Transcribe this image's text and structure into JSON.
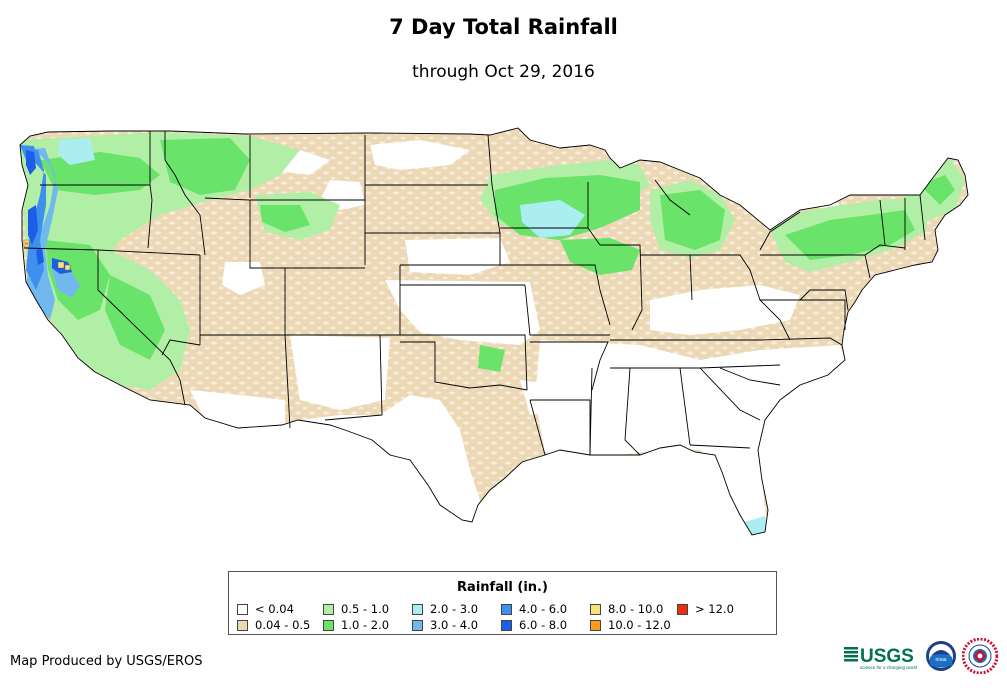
{
  "header": {
    "title": "7 Day Total Rainfall",
    "subtitle": "through Oct 29, 2016"
  },
  "legend": {
    "title": "Rainfall (in.)",
    "items": [
      {
        "label": "< 0.04",
        "color": "#ffffff"
      },
      {
        "label": "0.04 - 0.5",
        "color": "#ecd8b4"
      },
      {
        "label": "0.5 - 1.0",
        "color": "#b2efa6"
      },
      {
        "label": "1.0 - 2.0",
        "color": "#6ae36a"
      },
      {
        "label": "2.0 - 3.0",
        "color": "#aaeef2"
      },
      {
        "label": "3.0 - 4.0",
        "color": "#71b8ee"
      },
      {
        "label": "4.0 - 6.0",
        "color": "#3f8ff0"
      },
      {
        "label": "6.0 - 8.0",
        "color": "#1d5ee8"
      },
      {
        "label": "8.0 - 10.0",
        "color": "#fae27a"
      },
      {
        "label": "10.0 - 12.0",
        "color": "#fb9b17"
      },
      {
        "label": "> 12.0",
        "color": "#ec2e0f"
      }
    ]
  },
  "footer": {
    "credit": "Map Produced by USGS/EROS",
    "usgs_logo_text": "USGS",
    "usgs_tagline": "science for a changing world",
    "noaa_logo_text": "noaa",
    "nws_logo_text": "NATIONAL WEATHER SERVICE"
  },
  "map": {
    "region": "Contiguous United States",
    "colors": {
      "state_border": "#000000",
      "background": "#ffffff"
    }
  }
}
